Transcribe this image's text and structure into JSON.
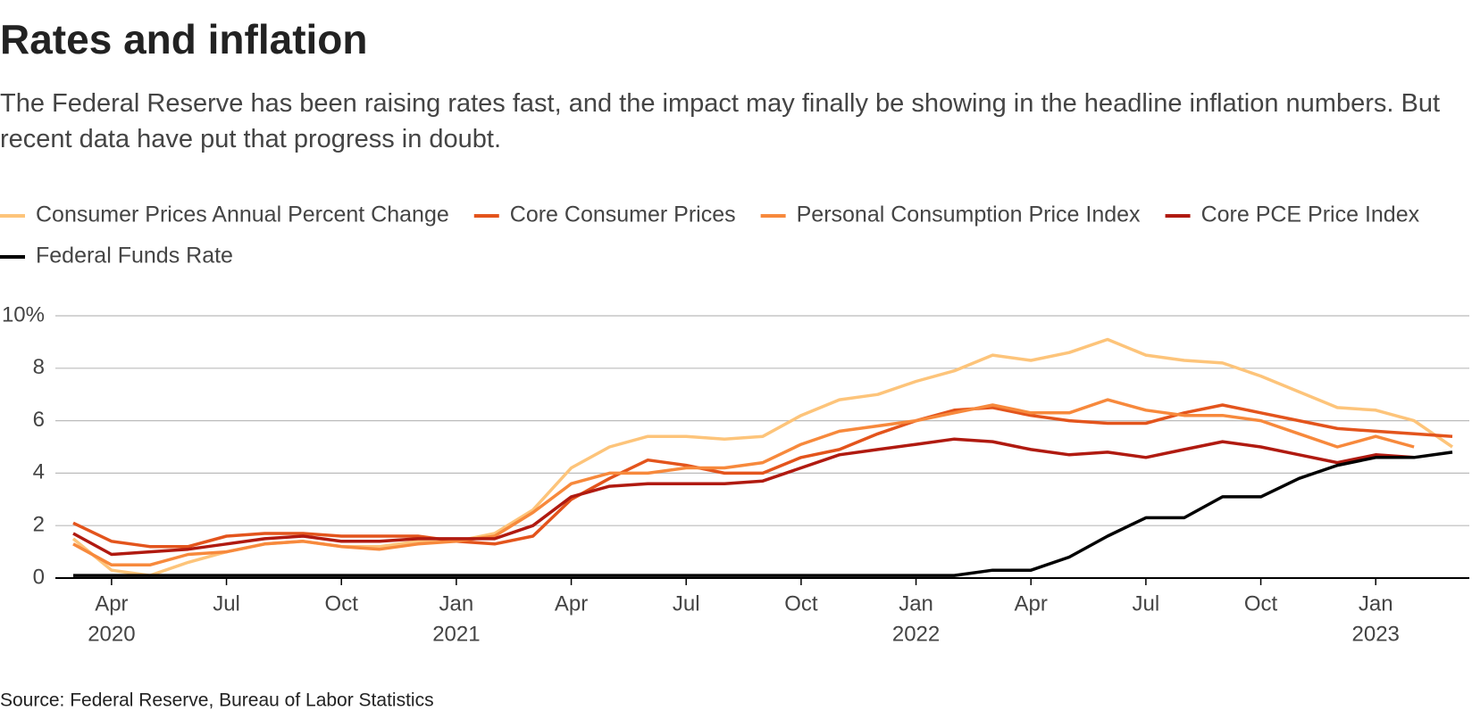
{
  "chart_data": {
    "type": "line",
    "title": "Rates and inflation",
    "subtitle": "The Federal Reserve has been raising rates fast, and the impact may finally be showing in the headline inflation numbers. But recent data have put that progress in doubt.",
    "source": "Source: Federal Reserve, Bureau of Labor Statistics",
    "x": [
      "2020-03",
      "2020-04",
      "2020-05",
      "2020-06",
      "2020-07",
      "2020-08",
      "2020-09",
      "2020-10",
      "2020-11",
      "2020-12",
      "2021-01",
      "2021-02",
      "2021-03",
      "2021-04",
      "2021-05",
      "2021-06",
      "2021-07",
      "2021-08",
      "2021-09",
      "2021-10",
      "2021-11",
      "2021-12",
      "2022-01",
      "2022-02",
      "2022-03",
      "2022-04",
      "2022-05",
      "2022-06",
      "2022-07",
      "2022-08",
      "2022-09",
      "2022-10",
      "2022-11",
      "2022-12",
      "2023-01",
      "2023-02",
      "2023-03"
    ],
    "series": [
      {
        "name": "Consumer Prices Annual Percent Change",
        "color": "#fdc47a",
        "values": [
          1.5,
          0.3,
          0.1,
          0.6,
          1.0,
          1.3,
          1.4,
          1.2,
          1.2,
          1.4,
          1.4,
          1.7,
          2.6,
          4.2,
          5.0,
          5.4,
          5.4,
          5.3,
          5.4,
          6.2,
          6.8,
          7.0,
          7.5,
          7.9,
          8.5,
          8.3,
          8.6,
          9.1,
          8.5,
          8.3,
          8.2,
          7.7,
          7.1,
          6.5,
          6.4,
          6.0,
          5.0
        ]
      },
      {
        "name": "Core Consumer Prices",
        "color": "#e3541c",
        "values": [
          2.1,
          1.4,
          1.2,
          1.2,
          1.6,
          1.7,
          1.7,
          1.6,
          1.6,
          1.6,
          1.4,
          1.3,
          1.6,
          3.0,
          3.8,
          4.5,
          4.3,
          4.0,
          4.0,
          4.6,
          4.9,
          5.5,
          6.0,
          6.4,
          6.5,
          6.2,
          6.0,
          5.9,
          5.9,
          6.3,
          6.6,
          6.3,
          6.0,
          5.7,
          5.6,
          5.5,
          5.4
        ]
      },
      {
        "name": "Personal Consumption Price Index",
        "color": "#f7893c",
        "values": [
          1.3,
          0.5,
          0.5,
          0.9,
          1.0,
          1.3,
          1.4,
          1.2,
          1.1,
          1.3,
          1.4,
          1.6,
          2.5,
          3.6,
          4.0,
          4.0,
          4.2,
          4.2,
          4.4,
          5.1,
          5.6,
          5.8,
          6.0,
          6.3,
          6.6,
          6.3,
          6.3,
          6.8,
          6.4,
          6.2,
          6.2,
          6.0,
          5.5,
          5.0,
          5.4,
          5.0,
          null
        ]
      },
      {
        "name": "Core PCE Price Index",
        "color": "#b01a10",
        "values": [
          1.7,
          0.9,
          1.0,
          1.1,
          1.3,
          1.5,
          1.6,
          1.4,
          1.4,
          1.5,
          1.5,
          1.5,
          2.0,
          3.1,
          3.5,
          3.6,
          3.6,
          3.6,
          3.7,
          4.2,
          4.7,
          4.9,
          5.1,
          5.3,
          5.2,
          4.9,
          4.7,
          4.8,
          4.6,
          4.9,
          5.2,
          5.0,
          4.7,
          4.4,
          4.7,
          4.6,
          null
        ]
      },
      {
        "name": "Federal Funds Rate",
        "color": "#000000",
        "values": [
          0.1,
          0.1,
          0.1,
          0.1,
          0.1,
          0.1,
          0.1,
          0.1,
          0.1,
          0.1,
          0.1,
          0.1,
          0.1,
          0.1,
          0.1,
          0.1,
          0.1,
          0.1,
          0.1,
          0.1,
          0.1,
          0.1,
          0.1,
          0.1,
          0.3,
          0.3,
          0.8,
          1.6,
          2.3,
          2.3,
          3.1,
          3.1,
          3.8,
          4.3,
          4.6,
          4.6,
          4.8
        ]
      }
    ],
    "xticks": [
      {
        "value": "2020-04",
        "label": "Apr"
      },
      {
        "value": "2020-07",
        "label": "Jul"
      },
      {
        "value": "2020-10",
        "label": "Oct"
      },
      {
        "value": "2021-01",
        "label": "Jan"
      },
      {
        "value": "2021-04",
        "label": "Apr"
      },
      {
        "value": "2021-07",
        "label": "Jul"
      },
      {
        "value": "2021-10",
        "label": "Oct"
      },
      {
        "value": "2022-01",
        "label": "Jan"
      },
      {
        "value": "2022-04",
        "label": "Apr"
      },
      {
        "value": "2022-07",
        "label": "Jul"
      },
      {
        "value": "2022-10",
        "label": "Oct"
      },
      {
        "value": "2023-01",
        "label": "Jan"
      }
    ],
    "xtick_years": [
      {
        "value": "2020-04",
        "label": "2020"
      },
      {
        "value": "2021-01",
        "label": "2021"
      },
      {
        "value": "2022-01",
        "label": "2022"
      },
      {
        "value": "2023-01",
        "label": "2023"
      }
    ],
    "ylim": [
      0,
      10
    ],
    "yticks": [
      0,
      2,
      4,
      6,
      8,
      {
        "value": 10,
        "label": "10%"
      }
    ],
    "grid": true
  }
}
